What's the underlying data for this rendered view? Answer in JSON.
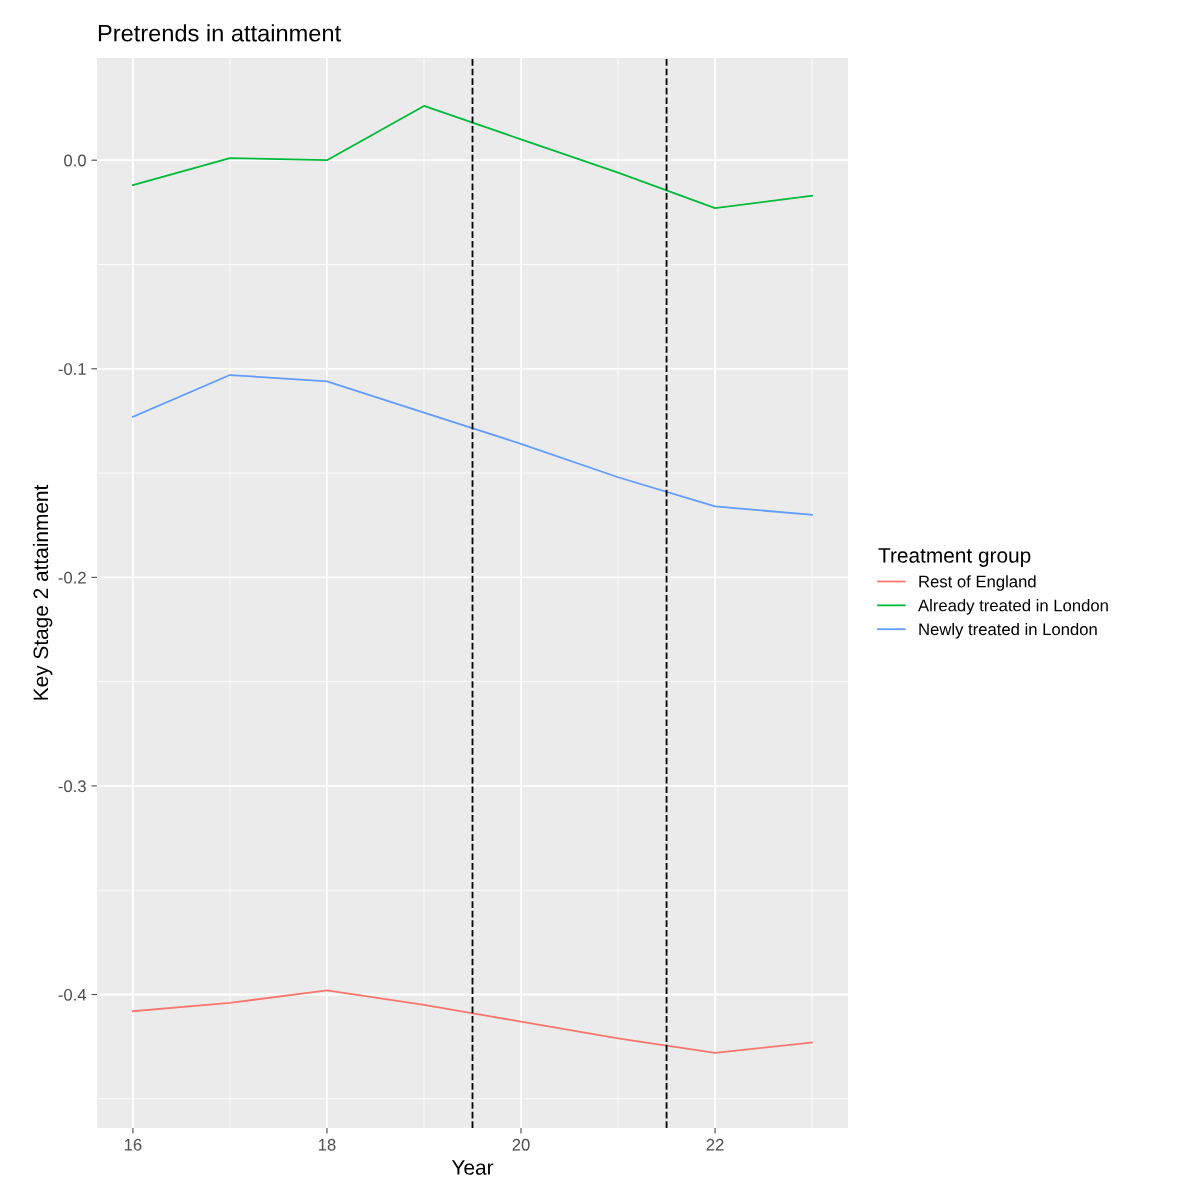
{
  "chart_data": {
    "type": "line",
    "title": "Pretrends in attainment",
    "xlabel": "Year",
    "ylabel": "Key Stage 2 attainment",
    "legend_title": "Treatment group",
    "x": [
      16,
      17,
      18,
      19,
      20,
      21,
      22,
      23
    ],
    "series": [
      {
        "name": "Rest of England",
        "color": "#f8766d",
        "values": [
          -0.408,
          -0.404,
          -0.398,
          -0.405,
          -0.413,
          -0.421,
          -0.428,
          -0.423
        ]
      },
      {
        "name": "Already treated in London",
        "color": "#00ba38",
        "values": [
          -0.012,
          0.001,
          0.0,
          0.026,
          0.01,
          -0.006,
          -0.023,
          -0.017
        ]
      },
      {
        "name": "Newly treated in London",
        "color": "#619cff",
        "values": [
          -0.123,
          -0.103,
          -0.106,
          -0.121,
          -0.136,
          -0.152,
          -0.166,
          -0.17
        ]
      }
    ],
    "xlim": [
      15.63,
      23.37
    ],
    "xticks": [
      16,
      18,
      20,
      22
    ],
    "ylim": [
      -0.464,
      0.049
    ],
    "yticks": [
      {
        "value": -0.4,
        "label": "-0.4"
      },
      {
        "value": -0.3,
        "label": "-0.3"
      },
      {
        "value": -0.2,
        "label": "-0.2"
      },
      {
        "value": -0.1,
        "label": "-0.1"
      },
      {
        "value": 0.0,
        "label": "0.0"
      }
    ],
    "ref_lines": [
      {
        "axis": "x",
        "value": 19.5,
        "color": "#000000",
        "line_style": "dashed"
      },
      {
        "axis": "x",
        "value": 21.5,
        "color": "#000000",
        "line_style": "dashed"
      }
    ],
    "grid": true,
    "legend": "right",
    "marker": "none",
    "line_style": "solid"
  }
}
